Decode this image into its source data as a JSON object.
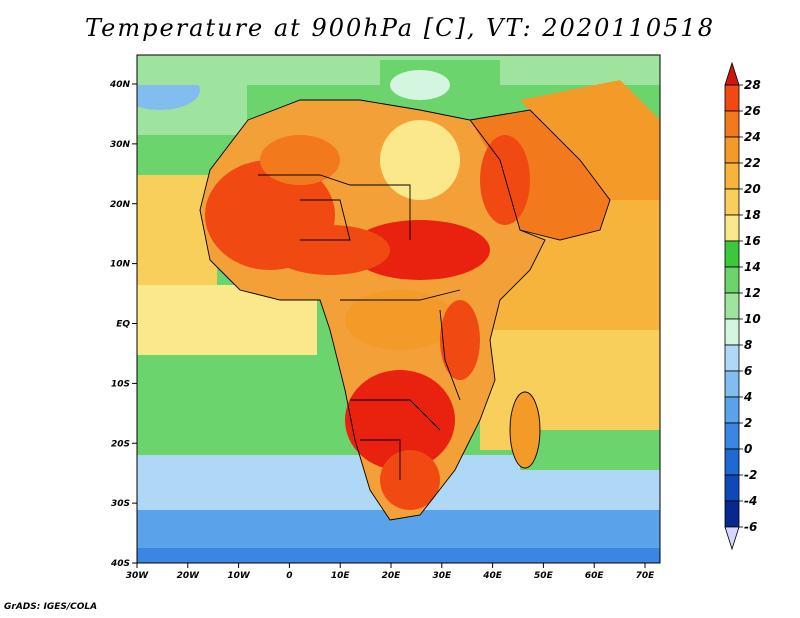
{
  "title": "Temperature at 900hPa [C], VT: 2020110518",
  "footer": "GrADS: IGES/COLA",
  "map": {
    "lon_labels": [
      "30W",
      "20W",
      "10W",
      "0",
      "10E",
      "20E",
      "30E",
      "40E",
      "50E",
      "60E",
      "70E"
    ],
    "lat_labels": [
      "40N",
      "30N",
      "20N",
      "10N",
      "EQ",
      "10S",
      "20S",
      "30S",
      "40S"
    ]
  },
  "colorbar": {
    "levels": [
      "28",
      "26",
      "24",
      "22",
      "20",
      "18",
      "16",
      "14",
      "12",
      "10",
      "8",
      "6",
      "4",
      "2",
      "0",
      "-2",
      "-4",
      "-6"
    ],
    "colors": [
      "#e8220e",
      "#f04a12",
      "#f27a1c",
      "#f49a28",
      "#f6b43c",
      "#f8cf5a",
      "#fbe88a",
      "#3cc83c",
      "#6cd46c",
      "#9ee49e",
      "#d4f5e0",
      "#aed8f6",
      "#82bdf0",
      "#5aa2ea",
      "#3a86e2",
      "#2068d2",
      "#1048b8",
      "#08288e",
      "#0a1f78"
    ],
    "top_arrow_color": "#d0150a",
    "bottom_arrow_color": "#d6d6ff"
  }
}
